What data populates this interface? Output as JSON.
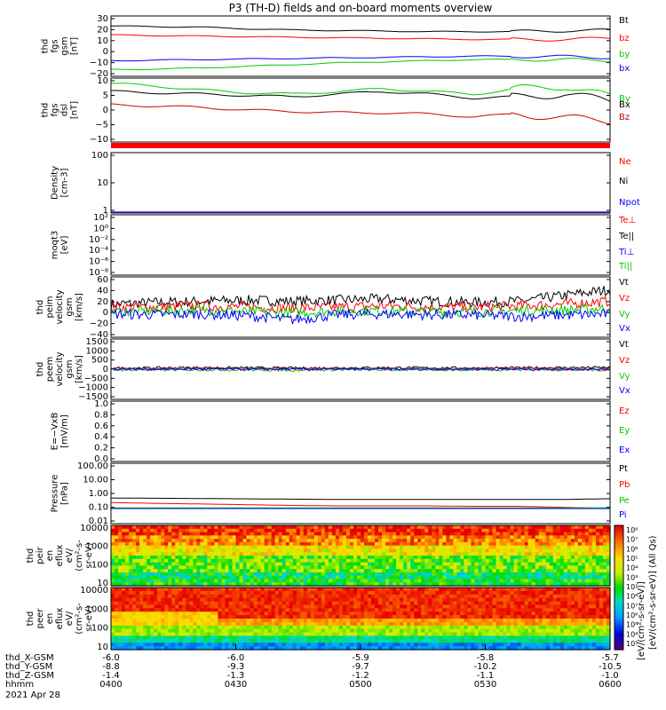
{
  "chart_data": {
    "type": "line",
    "title": "P3 (TH-D) fields and on-board moments overview",
    "time_axis": {
      "ticks": [
        "0400",
        "0430",
        "0500",
        "0530",
        "0600"
      ],
      "date": "2021 Apr 28",
      "row_labels": [
        "thd_X-GSM",
        "thd_Y-GSM",
        "thd_Z-GSM",
        "hhmm"
      ],
      "rows": [
        [
          "-6.0",
          "-6.0",
          "-5.9",
          "-5.8",
          "-5.7"
        ],
        [
          "-8.8",
          "-9.3",
          "-9.7",
          "-10.2",
          "-10.5"
        ],
        [
          "-1.4",
          "-1.3",
          "-1.2",
          "-1.1",
          "-1.0"
        ]
      ]
    },
    "panels": [
      {
        "name": "fgs-gsm",
        "ylabel": [
          "thd",
          "fgs",
          "gsm",
          "[nT]"
        ],
        "yticks": [
          "30",
          "20",
          "10",
          "0",
          "−10",
          "−20"
        ],
        "ylim": [
          -22,
          32
        ],
        "series": [
          {
            "name": "Bt",
            "color": "#000000",
            "values": [
              23,
              22.5,
              22,
              20.5,
              19.5,
              19,
              18.5,
              18,
              18,
              18,
              19,
              19
            ]
          },
          {
            "name": "bz",
            "color": "#ff0000",
            "values": [
              15,
              14.5,
              14,
              13.5,
              13,
              12.5,
              12,
              11.5,
              11,
              11,
              11,
              12
            ]
          },
          {
            "name": "by",
            "color": "#00cc00",
            "values": [
              -16,
              -15.5,
              -14.5,
              -13,
              -11.5,
              -10,
              -9,
              -8,
              -7,
              -7,
              -7,
              -8
            ]
          },
          {
            "name": "bx",
            "color": "#0000ff",
            "values": [
              -8,
              -7.5,
              -7,
              -6.5,
              -6,
              -5.5,
              -5,
              -4.5,
              -4,
              -4,
              -4.5,
              -5
            ]
          }
        ]
      },
      {
        "name": "fgs-dsl",
        "ylabel": [
          "thd",
          "fgs",
          "dsl",
          "[nT]"
        ],
        "yticks": [
          "10",
          "5",
          "0",
          "−5",
          "−10"
        ],
        "ylim": [
          -14,
          10
        ],
        "series": [
          {
            "name": "By",
            "color": "#00cc00",
            "values": [
              8,
              7,
              5.5,
              4.5,
              4,
              5,
              6,
              5,
              4,
              6,
              7,
              3
            ]
          },
          {
            "name": "Bx",
            "color": "#000000",
            "values": [
              5,
              4.5,
              4,
              3.5,
              3,
              4,
              5,
              4,
              2.5,
              3,
              4,
              1.5
            ]
          },
          {
            "name": "Bz",
            "color": "#cc0000",
            "values": [
              0,
              -0.5,
              -1,
              -2,
              -2.5,
              -3,
              -3,
              -3.5,
              -4.5,
              -3.5,
              -5,
              -6
            ]
          }
        ]
      },
      {
        "name": "density",
        "ylabel": [
          "Density",
          "[cm-3]"
        ],
        "yticks": [
          "100",
          "10",
          "1"
        ],
        "ylim": [
          1,
          300
        ],
        "log": true,
        "series": [
          {
            "name": "Ne",
            "color": "#ff0000",
            "values": [
              0.9,
              0.9,
              0.9,
              0.9,
              0.9,
              0.9,
              0.9,
              0.9,
              0.9,
              0.9,
              0.9,
              0.9
            ]
          },
          {
            "name": "Ni",
            "color": "#000000",
            "values": [
              0.95,
              0.95,
              0.95,
              0.95,
              0.95,
              0.95,
              0.95,
              0.95,
              0.95,
              0.95,
              0.95,
              0.95
            ]
          },
          {
            "name": "Npot",
            "color": "#0000ff",
            "values": [
              1.1,
              1.1,
              1.1,
              1.1,
              1.1,
              1.1,
              1.1,
              1.1,
              1.1,
              1.1,
              1.1,
              1.1
            ]
          }
        ]
      },
      {
        "name": "moqt3",
        "ylabel": [
          "moqt3",
          "[eV]"
        ],
        "yticks": [
          "10²",
          "10⁰",
          "10⁻²",
          "10⁻⁴",
          "10⁻⁶",
          "10⁻⁸"
        ],
        "series": [
          {
            "name": "Te⊥",
            "color": "#ff0000"
          },
          {
            "name": "Te||",
            "color": "#000000"
          },
          {
            "name": "Ti⊥",
            "color": "#0000ff"
          },
          {
            "name": "Ti||",
            "color": "#00cc00"
          }
        ]
      },
      {
        "name": "peim-velocity",
        "ylabel": [
          "thd",
          "peim",
          "velocity",
          "gsm",
          "[km/s]"
        ],
        "yticks": [
          "60",
          "40",
          "20",
          "0",
          "−20",
          "−40"
        ],
        "ylim": [
          -42,
          62
        ],
        "series": [
          {
            "name": "Vt",
            "color": "#000000",
            "values": [
              15,
              18,
              20,
              22,
              20,
              22,
              24,
              20,
              18,
              20,
              30,
              40
            ]
          },
          {
            "name": "Vz",
            "color": "#ff0000",
            "values": [
              10,
              10,
              12,
              10,
              8,
              10,
              12,
              10,
              10,
              12,
              15,
              20
            ]
          },
          {
            "name": "Vy",
            "color": "#00cc00",
            "values": [
              2,
              3,
              5,
              2,
              0,
              3,
              4,
              2,
              2,
              4,
              5,
              8
            ]
          },
          {
            "name": "Vx",
            "color": "#0000ff",
            "values": [
              -2,
              -3,
              -2,
              -5,
              -12,
              -3,
              -2,
              -3,
              -4,
              -6,
              -4,
              -2
            ]
          }
        ]
      },
      {
        "name": "peem-velocity",
        "ylabel": [
          "thd",
          "peem",
          "velocity",
          "gsm",
          "[km/s]"
        ],
        "yticks": [
          "1500",
          "1000",
          "500",
          "0",
          "−500",
          "−1000",
          "−1500"
        ],
        "ylim": [
          -1550,
          1550
        ],
        "series": [
          {
            "name": "Vt",
            "color": "#000000",
            "values": [
              60,
              70,
              80,
              70,
              60,
              70,
              80,
              70,
              60,
              70,
              80,
              90
            ]
          },
          {
            "name": "Vz",
            "color": "#ff0000",
            "values": [
              20,
              20,
              30,
              20,
              20,
              25,
              20,
              20,
              25,
              30,
              20,
              20
            ]
          },
          {
            "name": "Vy",
            "color": "#00cc00",
            "values": [
              -30,
              -40,
              -30,
              -40,
              -50,
              -30,
              -40,
              -30,
              -40,
              -30,
              -40,
              -50
            ]
          },
          {
            "name": "Vx",
            "color": "#0000ff",
            "values": [
              0,
              0,
              0,
              0,
              0,
              0,
              0,
              0,
              0,
              0,
              0,
              0
            ]
          }
        ]
      },
      {
        "name": "e-field",
        "ylabel": [
          "E=−VxB",
          "[mV/m]"
        ],
        "yticks": [
          "1.0",
          "0.8",
          "0.6",
          "0.4",
          "0.2",
          "0.0"
        ],
        "ylim": [
          0,
          1
        ],
        "series": [
          {
            "name": "Ez",
            "color": "#ff0000"
          },
          {
            "name": "Ey",
            "color": "#00cc00"
          },
          {
            "name": "Ex",
            "color": "#0000ff"
          }
        ]
      },
      {
        "name": "pressure",
        "ylabel": [
          "Pressure",
          "[nPa]"
        ],
        "yticks": [
          "100.00",
          "10.00",
          "1.00",
          "0.10",
          "0.01"
        ],
        "ylim": [
          0.01,
          100
        ],
        "log": true,
        "series": [
          {
            "name": "Pt",
            "color": "#000000",
            "values": [
              0.5,
              0.48,
              0.46,
              0.44,
              0.42,
              0.4,
              0.4,
              0.4,
              0.4,
              0.4,
              0.4,
              0.45
            ]
          },
          {
            "name": "Pb",
            "color": "#ff0000",
            "values": [
              0.25,
              0.22,
              0.2,
              0.18,
              0.16,
              0.15,
              0.15,
              0.15,
              0.14,
              0.14,
              0.12,
              0.1
            ]
          },
          {
            "name": "Pe",
            "color": "#00cc00",
            "values": [
              0.11,
              0.11,
              0.11,
              0.11,
              0.11,
              0.11,
              0.11,
              0.11,
              0.11,
              0.11,
              0.11,
              0.11
            ]
          },
          {
            "name": "Pi",
            "color": "#0000ff",
            "values": [
              0.1,
              0.1,
              0.1,
              0.1,
              0.1,
              0.1,
              0.1,
              0.1,
              0.1,
              0.1,
              0.1,
              0.1
            ]
          }
        ]
      },
      {
        "name": "peir-eflux",
        "ylabel": [
          "thd",
          "peir",
          "en",
          "eflux",
          "eV/",
          "(cm²-s-",
          "sr-eV)"
        ],
        "yticks": [
          "10000",
          "1000",
          "100",
          "10"
        ]
      },
      {
        "name": "peer-eflux",
        "ylabel": [
          "thd",
          "peer",
          "en",
          "eflux",
          "eV/",
          "(cm²-s-",
          "sr-eV)"
        ],
        "yticks": [
          "10000",
          "1000",
          "100",
          "10"
        ]
      }
    ],
    "colorbar": {
      "label": "[eV/(cm²-s-sr-eV)]",
      "label2": "[eV/(cm²-s-sr-eV)] (All Qs)",
      "ticks": [
        "10⁸",
        "10⁷",
        "10⁶",
        "10⁵",
        "10⁴",
        "10³",
        "10²",
        "10⁸",
        "10⁷",
        "10⁶",
        "10⁵",
        "10⁴",
        "10³"
      ]
    }
  }
}
